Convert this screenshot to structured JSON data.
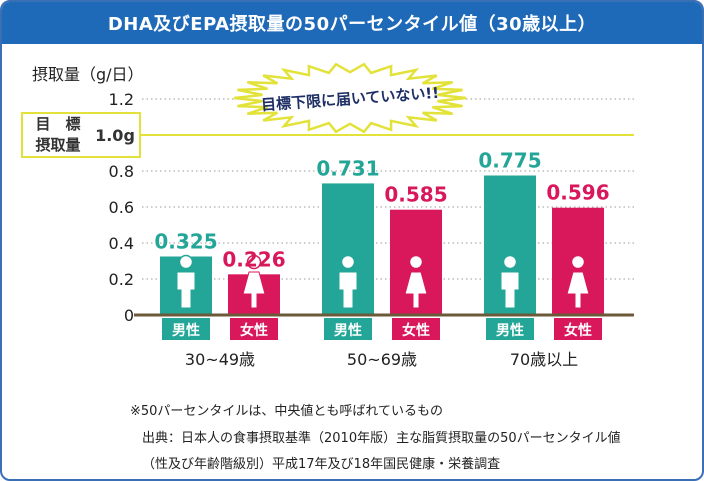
{
  "title": "DHA及びEPA摂取量の50パーセンタイル値（30歳以上）",
  "colors": {
    "male": "#23a697",
    "female": "#d9185b",
    "target": "#e2e23a",
    "title_bg": "#1f6ab8",
    "callout_text": "#1e2f66"
  },
  "callout": "目標下限に届いていない!!",
  "target": {
    "label_line1": "目　標",
    "label_line2": "摂取量",
    "value_label": "1.0g",
    "value": 1.0
  },
  "chart_data": {
    "type": "bar",
    "ylabel": "摂取量（g/日）",
    "ylim": [
      0,
      1.2
    ],
    "yticks": [
      "0",
      "0.2",
      "0.4",
      "0.6",
      "0.8",
      "1.2"
    ],
    "ytick_values": [
      0,
      0.2,
      0.4,
      0.6,
      0.8,
      1.2
    ],
    "categories": [
      "30~49歳",
      "50~69歳",
      "70歳以上"
    ],
    "series": [
      {
        "name": "男性",
        "values": [
          0.325,
          0.731,
          0.775
        ],
        "labels": [
          "0.325",
          "0.731",
          "0.775"
        ]
      },
      {
        "name": "女性",
        "values": [
          0.226,
          0.585,
          0.596
        ],
        "labels": [
          "0.226",
          "0.585",
          "0.596"
        ]
      }
    ],
    "grid": "dotted-horizontal"
  },
  "footnotes": [
    "※50パーセンタイルは、中央値とも呼ばれているもの",
    "出典：日本人の食事摂取基準（2010年版）主な脂質摂取量の50パーセンタイル値",
    "（性及び年齢階級別）平成17年及び18年国民健康・栄養調査"
  ]
}
